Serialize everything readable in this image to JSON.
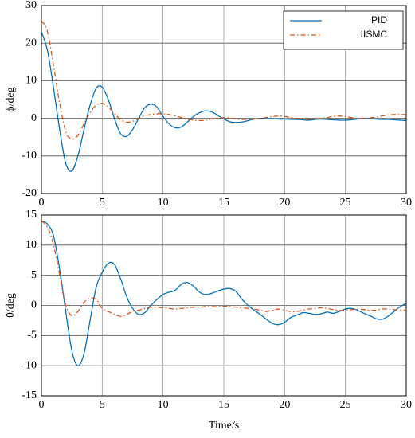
{
  "chart_data": [
    {
      "type": "line",
      "ylabel": "ϕ/deg",
      "legend": "upper right",
      "grid": true,
      "xlim": [
        0,
        30
      ],
      "xticks": [
        0,
        5,
        10,
        15,
        20,
        25,
        30
      ],
      "ylim": [
        -20,
        30
      ],
      "yticks": [
        -20,
        -10,
        0,
        10,
        20,
        30
      ],
      "x": [
        0,
        0.5,
        1,
        1.5,
        2,
        2.5,
        3,
        3.5,
        4,
        4.5,
        5,
        5.5,
        6,
        6.5,
        7,
        7.5,
        8,
        8.5,
        9,
        9.5,
        10,
        10.5,
        11,
        11.5,
        12,
        12.5,
        13,
        13.5,
        14,
        14.5,
        15,
        15.5,
        16,
        16.5,
        17,
        17.5,
        18,
        18.5,
        19,
        19.5,
        20,
        20.5,
        21,
        21.5,
        22,
        22.5,
        23,
        23.5,
        24,
        24.5,
        25,
        25.5,
        26,
        26.5,
        27,
        27.5,
        28,
        28.5,
        29,
        29.5,
        30
      ],
      "series": [
        {
          "name": "PID",
          "color": "#0072bd",
          "style": "solid",
          "values": [
            23,
            18,
            8,
            -3,
            -12,
            -14,
            -10,
            -3,
            3.5,
            8,
            8.3,
            5,
            0,
            -4,
            -4.8,
            -3,
            0,
            2.8,
            3.8,
            3,
            0.5,
            -1.5,
            -2.5,
            -2.3,
            -1,
            0.5,
            1.5,
            2,
            1.7,
            0.8,
            -0.2,
            -0.9,
            -1.1,
            -1,
            -0.6,
            -0.2,
            0,
            0,
            -0.1,
            -0.2,
            -0.2,
            -0.3,
            -0.3,
            -0.4,
            -0.5,
            -0.3,
            -0.2,
            -0.3,
            -0.4,
            -0.5,
            -0.5,
            -0.4,
            -0.2,
            0,
            0,
            -0.2,
            -0.3,
            -0.3,
            -0.4,
            -0.5,
            -0.6
          ]
        },
        {
          "name": "IISMC",
          "color": "#d95319",
          "style": "dashdot",
          "values": [
            26,
            23,
            14,
            4,
            -3.5,
            -5.5,
            -4.5,
            -1.5,
            1.5,
            3.5,
            4,
            3,
            1.3,
            -0.3,
            -1,
            -0.8,
            0,
            0.7,
            1,
            1.2,
            1.2,
            1,
            0.6,
            0.2,
            -0.2,
            -0.5,
            -0.6,
            -0.5,
            -0.2,
            0,
            0.2,
            0.1,
            -0.1,
            -0.3,
            -0.3,
            -0.2,
            0,
            0.2,
            0.5,
            0.6,
            0.5,
            0.2,
            0,
            -0.2,
            -0.3,
            -0.2,
            0,
            0.2,
            0.5,
            0.6,
            0.5,
            0.2,
            0,
            0,
            0.1,
            0.3,
            0.6,
            0.9,
            1,
            1,
            1
          ]
        }
      ]
    },
    {
      "type": "line",
      "ylabel": "θ/deg",
      "xlabel": "Time/s",
      "grid": true,
      "xlim": [
        0,
        30
      ],
      "xticks": [
        0,
        5,
        10,
        15,
        20,
        25,
        30
      ],
      "ylim": [
        -15,
        15
      ],
      "yticks": [
        -15,
        -10,
        -5,
        0,
        5,
        10,
        15
      ],
      "x": [
        0,
        0.5,
        1,
        1.5,
        2,
        2.5,
        3,
        3.5,
        4,
        4.5,
        5,
        5.5,
        6,
        6.5,
        7,
        7.5,
        8,
        8.5,
        9,
        9.5,
        10,
        10.5,
        11,
        11.5,
        12,
        12.5,
        13,
        13.5,
        14,
        14.5,
        15,
        15.5,
        16,
        16.5,
        17,
        17.5,
        18,
        18.5,
        19,
        19.5,
        20,
        20.5,
        21,
        21.5,
        22,
        22.5,
        23,
        23.5,
        24,
        24.5,
        25,
        25.5,
        26,
        26.5,
        27,
        27.5,
        28,
        28.5,
        29,
        29.5,
        30
      ],
      "series": [
        {
          "color": "#0072bd",
          "style": "solid",
          "values": [
            14,
            13.5,
            11.5,
            6,
            -1,
            -7.5,
            -10,
            -8,
            -2.5,
            3,
            5.5,
            7,
            6.8,
            4.5,
            1.5,
            -0.5,
            -1.5,
            -1.2,
            0,
            1,
            1.8,
            2.2,
            2.5,
            3.5,
            3.8,
            3.2,
            2.2,
            1.8,
            2,
            2.4,
            2.7,
            2.8,
            2.3,
            1,
            0,
            -0.8,
            -1.5,
            -2.3,
            -3,
            -3.2,
            -2.8,
            -2,
            -1.6,
            -1.2,
            -1.3,
            -1.5,
            -1.4,
            -1.1,
            -1.3,
            -1,
            -0.6,
            -0.5,
            -0.8,
            -1.3,
            -1.7,
            -2.2,
            -2.3,
            -1.8,
            -1,
            -0.2,
            0.3
          ]
        },
        {
          "color": "#d95319",
          "style": "dashdot",
          "values": [
            14,
            13,
            10,
            5,
            0,
            -1.7,
            -1,
            0.5,
            1.2,
            1,
            -0.5,
            -1,
            -1.5,
            -1.8,
            -1.5,
            -1,
            -0.8,
            -0.5,
            -0.3,
            -0.3,
            -0.4,
            -0.5,
            -0.6,
            -0.5,
            -0.4,
            -0.3,
            -0.3,
            -0.2,
            -0.2,
            -0.2,
            -0.1,
            -0.2,
            -0.3,
            -0.4,
            -0.5,
            -0.6,
            -0.8,
            -1,
            -0.8,
            -0.6,
            -0.8,
            -1,
            -1,
            -0.8,
            -0.6,
            -0.5,
            -0.4,
            -0.5,
            -0.7,
            -0.8,
            -0.8,
            -0.7,
            -0.6,
            -0.7,
            -0.8,
            -0.8,
            -0.6,
            -0.6,
            -0.7,
            -0.8,
            -0.8
          ]
        }
      ]
    }
  ]
}
